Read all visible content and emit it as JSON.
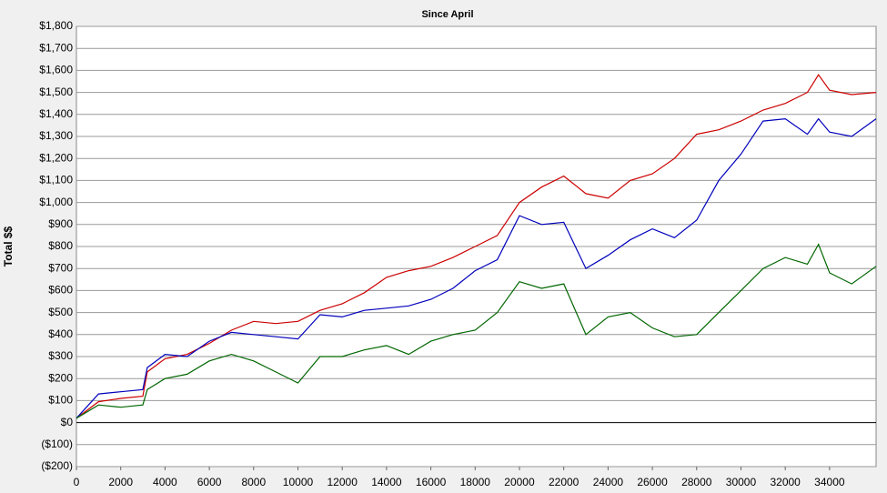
{
  "chart_data": {
    "type": "line",
    "title": "Since April",
    "y_label": "Total $$",
    "x": [
      0,
      1000,
      2000,
      3000,
      3200,
      4000,
      5000,
      6000,
      7000,
      8000,
      9000,
      10000,
      11000,
      12000,
      13000,
      14000,
      15000,
      16000,
      17000,
      18000,
      19000,
      20000,
      21000,
      22000,
      23000,
      24000,
      25000,
      26000,
      27000,
      28000,
      29000,
      30000,
      31000,
      32000,
      33000,
      33500,
      34000,
      35000,
      36100
    ],
    "series": [
      {
        "color": "#cc0000",
        "values": [
          20,
          95,
          110,
          120,
          230,
          290,
          310,
          360,
          420,
          460,
          450,
          460,
          510,
          540,
          590,
          660,
          690,
          710,
          750,
          800,
          850,
          1000,
          1070,
          1120,
          1040,
          1020,
          1100,
          1130,
          1200,
          1310,
          1330,
          1370,
          1420,
          1450,
          1500,
          1580,
          1510,
          1490,
          1500
        ]
      },
      {
        "color": "#0000bb",
        "values": [
          20,
          130,
          140,
          150,
          250,
          310,
          300,
          370,
          410,
          400,
          390,
          380,
          490,
          480,
          510,
          520,
          530,
          560,
          610,
          690,
          740,
          940,
          900,
          910,
          700,
          760,
          830,
          880,
          840,
          920,
          1100,
          1220,
          1370,
          1380,
          1310,
          1380,
          1320,
          1300,
          1380
        ]
      },
      {
        "color": "#006600",
        "values": [
          20,
          80,
          70,
          80,
          150,
          200,
          220,
          280,
          310,
          280,
          230,
          180,
          300,
          300,
          330,
          350,
          310,
          370,
          400,
          420,
          500,
          640,
          610,
          630,
          400,
          480,
          500,
          430,
          390,
          400,
          500,
          600,
          700,
          750,
          720,
          810,
          680,
          630,
          710
        ]
      }
    ],
    "xlim": [
      0,
      36100
    ],
    "xticks": [
      0,
      2000,
      4000,
      6000,
      8000,
      10000,
      12000,
      14000,
      16000,
      18000,
      20000,
      22000,
      24000,
      26000,
      28000,
      30000,
      32000,
      34000
    ],
    "ylim": [
      -200,
      1800
    ],
    "yticks": [
      {
        "value": -200,
        "label": "($200)"
      },
      {
        "value": -100,
        "label": "($100)"
      },
      {
        "value": 0,
        "label": "$0"
      },
      {
        "value": 100,
        "label": "$100"
      },
      {
        "value": 200,
        "label": "$200"
      },
      {
        "value": 300,
        "label": "$300"
      },
      {
        "value": 400,
        "label": "$400"
      },
      {
        "value": 500,
        "label": "$500"
      },
      {
        "value": 600,
        "label": "$600"
      },
      {
        "value": 700,
        "label": "$700"
      },
      {
        "value": 800,
        "label": "$800"
      },
      {
        "value": 900,
        "label": "$900"
      },
      {
        "value": 1000,
        "label": "$1,000"
      },
      {
        "value": 1100,
        "label": "$1,100"
      },
      {
        "value": 1200,
        "label": "$1,200"
      },
      {
        "value": 1300,
        "label": "$1,300"
      },
      {
        "value": 1400,
        "label": "$1,400"
      },
      {
        "value": 1500,
        "label": "$1,500"
      },
      {
        "value": 1600,
        "label": "$1,600"
      },
      {
        "value": 1700,
        "label": "$1,700"
      },
      {
        "value": 1800,
        "label": "$1,800"
      }
    ],
    "grid": true
  }
}
